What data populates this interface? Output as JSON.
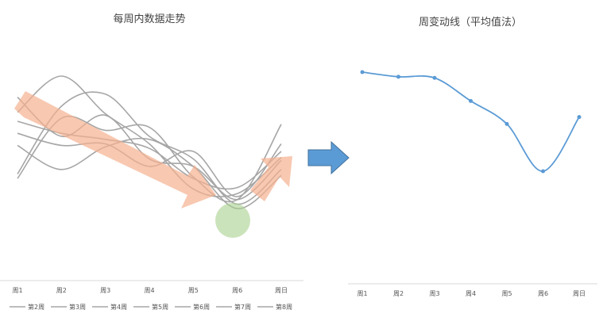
{
  "chart_data": [
    {
      "type": "line",
      "title": "每周内数据走势",
      "categories": [
        "周1",
        "周2",
        "周3",
        "周4",
        "周5",
        "周6",
        "周日"
      ],
      "series": [
        {
          "name": "第2周",
          "values": [
            0.86,
            0.6,
            0.74,
            0.45,
            0.4,
            0.18,
            0.44
          ]
        },
        {
          "name": "第3周",
          "values": [
            0.7,
            0.62,
            0.58,
            0.52,
            0.32,
            0.26,
            0.5
          ]
        },
        {
          "name": "第4周",
          "values": [
            0.62,
            0.54,
            0.55,
            0.4,
            0.5,
            0.2,
            0.55
          ]
        },
        {
          "name": "第5周",
          "values": [
            0.76,
            1.0,
            0.75,
            0.55,
            0.25,
            0.22,
            0.46
          ]
        },
        {
          "name": "第6周",
          "values": [
            0.54,
            0.38,
            0.53,
            0.58,
            0.4,
            0.12,
            0.34
          ]
        },
        {
          "name": "第7周",
          "values": [
            0.35,
            0.8,
            0.88,
            0.6,
            0.45,
            0.15,
            0.38
          ]
        },
        {
          "name": "第8周",
          "values": [
            0.32,
            0.72,
            0.64,
            0.66,
            0.33,
            0.18,
            0.68
          ]
        }
      ],
      "legend": "bottom"
    },
    {
      "type": "line",
      "title": "周变动线（平均值法）",
      "categories": [
        "周1",
        "周2",
        "周3",
        "周4",
        "周5",
        "周6",
        "周日"
      ],
      "series": [
        {
          "name": "",
          "values": [
            1.0,
            0.96,
            0.95,
            0.75,
            0.55,
            0.14,
            0.61
          ]
        }
      ],
      "color": "#5b9bd5"
    }
  ]
}
